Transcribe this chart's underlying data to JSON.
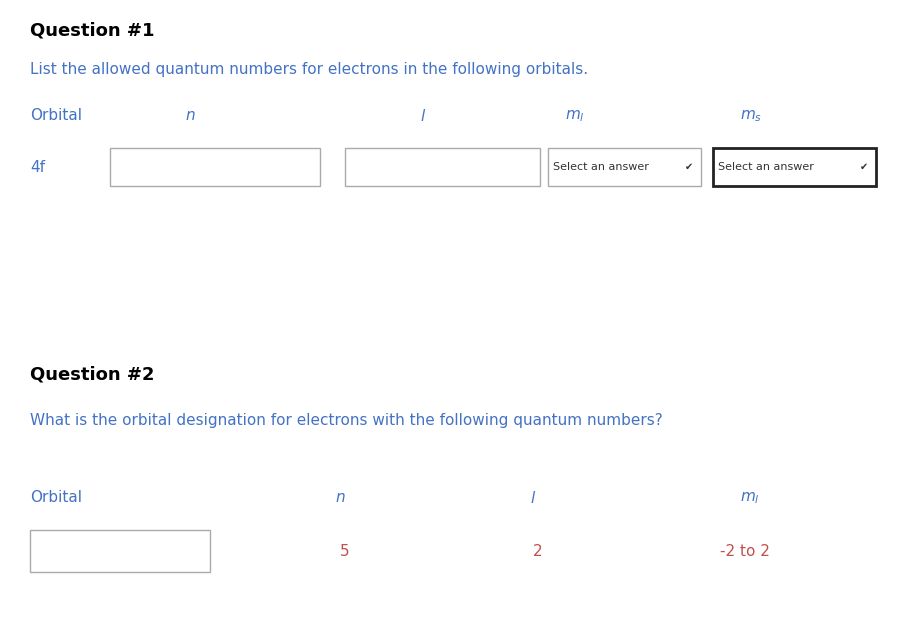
{
  "bg_color": "#ffffff",
  "q1_label": "Question #1",
  "q1_label_color": "#000000",
  "q1_label_fontsize": 13,
  "q1_desc": "List the allowed quantum numbers for electrons in the following orbitals.",
  "q1_desc_color": "#4472c4",
  "q1_desc_fontsize": 11,
  "q1_header_color": "#4472c4",
  "q1_row_label": "4f",
  "q1_row_label_color": "#4472c4",
  "q2_label": "Question #2",
  "q2_label_color": "#000000",
  "q2_label_fontsize": 13,
  "q2_desc": "What is the orbital designation for electrons with the following quantum numbers?",
  "q2_desc_color": "#4472c4",
  "q2_desc_fontsize": 11,
  "q2_header_color": "#4472c4",
  "q2_val_color": "#c0504d",
  "n_val": "5",
  "l_val": "2",
  "ml_val": "-2 to 2",
  "box_edge_light": "#aaaaaa",
  "box_edge_dark": "#222222",
  "dd_text_color": "#333333",
  "dd_text": "Select an answer",
  "dd_arrow": "✔"
}
